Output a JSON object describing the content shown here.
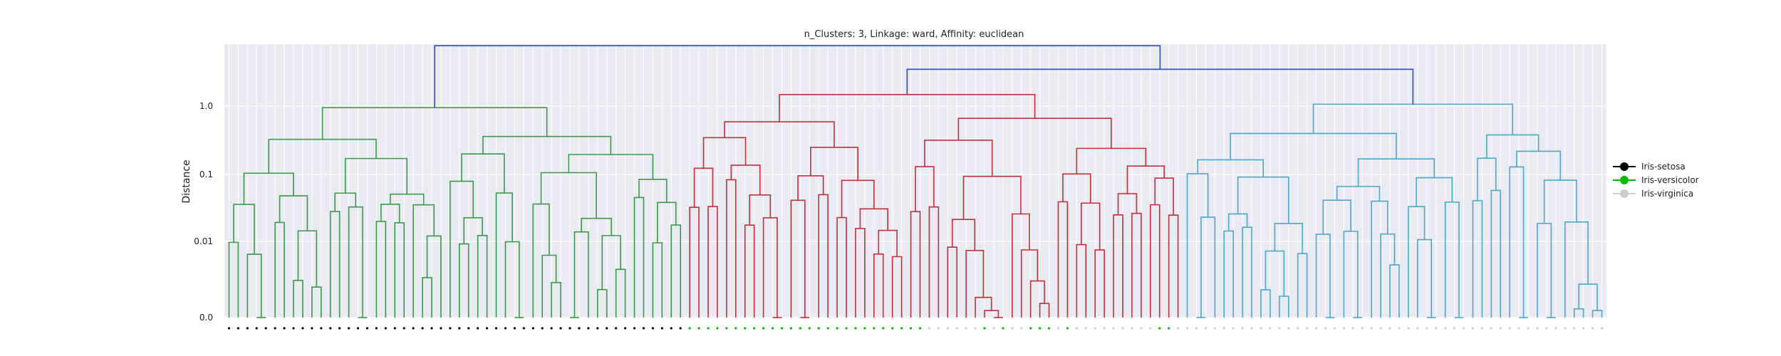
{
  "chart_data": {
    "type": "dendrogram",
    "title": "n_Clusters: 3, Linkage: ward, Affinity: euclidean",
    "ylabel": "Distance",
    "xlabel": "",
    "y_scale": "symlog",
    "y_ticks": [
      {
        "value": 0.0,
        "label": "0.0"
      },
      {
        "value": 0.01,
        "label": "0.01"
      },
      {
        "value": 0.1,
        "label": "0.1"
      },
      {
        "value": 1.0,
        "label": "1.0"
      }
    ],
    "ylim": [
      0,
      5.0
    ],
    "grid": true,
    "background": "#eaeaf2",
    "n_leaves": 150,
    "legend": {
      "placement": "right",
      "entries": [
        {
          "label": "Iris-setosa",
          "color": "#000000"
        },
        {
          "label": "Iris-versicolor",
          "color": "#00bb00"
        },
        {
          "label": "Iris-virginica",
          "color": "#cccccc"
        }
      ]
    },
    "clusters": [
      {
        "color": "#3a9a4a",
        "leaf_range": [
          0,
          49
        ],
        "merge_height": 0.95
      },
      {
        "color": "#c0303a",
        "leaf_range": [
          50,
          103
        ],
        "merge_height": 1.35
      },
      {
        "color": "#4aa8c8",
        "leaf_range": [
          104,
          149
        ],
        "merge_height": 1.05
      }
    ],
    "top_links": [
      {
        "color": "#3050b0",
        "joins": [
          "cluster-2",
          "cluster-3"
        ],
        "height": 2.6
      },
      {
        "color": "#3050b0",
        "joins": [
          "cluster-1",
          "merged-2-3"
        ],
        "height": 4.8
      }
    ],
    "leaf_classes": "0x50,1x26,2x6,1x1,2x1,1x1,2x2,1x3,2x1,1x1,2x9,1x2,2x47"
  }
}
